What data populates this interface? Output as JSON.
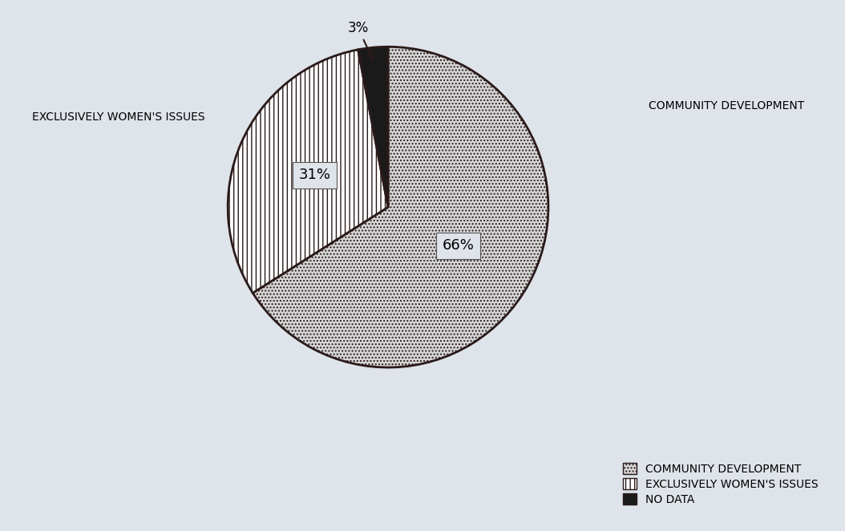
{
  "chart_data": {
    "type": "pie",
    "categories": [
      "COMMUNITY DEVELOPMENT",
      "EXCLUSIVELY WOMEN'S ISSUES",
      "NO DATA"
    ],
    "values": [
      66,
      31,
      3
    ],
    "value_labels": [
      "66%",
      "31%",
      "3%"
    ],
    "colors": [
      "#d6d6d6",
      "#ffffff",
      "#1a1a1a"
    ],
    "data_labels": true,
    "legend": "lower right"
  }
}
